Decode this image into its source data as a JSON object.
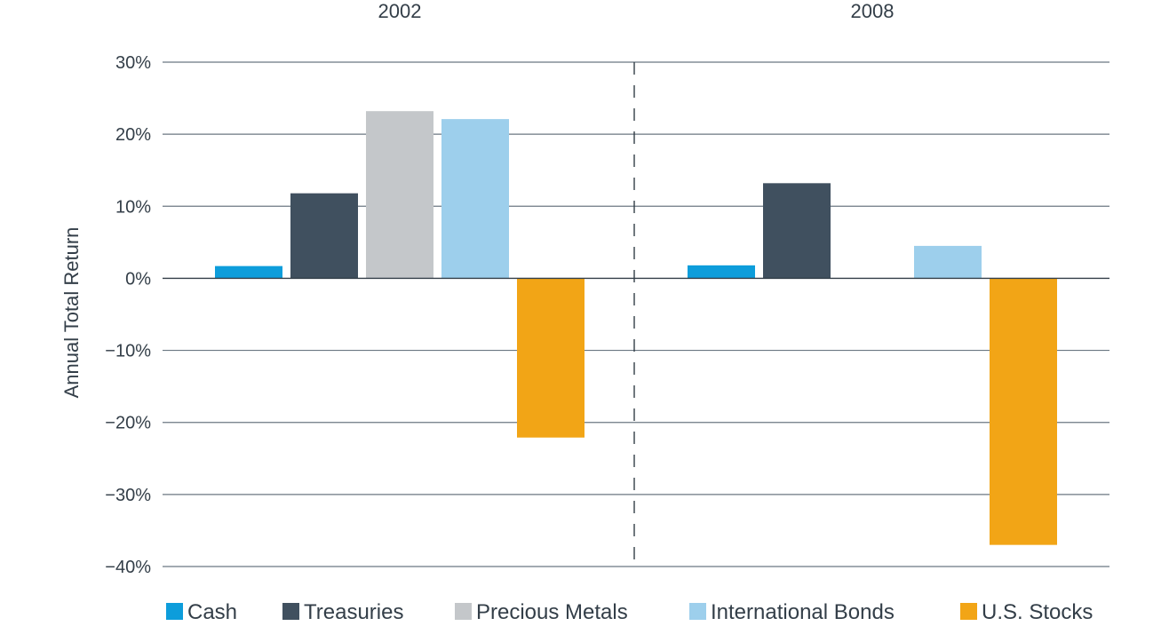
{
  "chart_data": {
    "type": "bar",
    "title": "",
    "xlabel": "",
    "ylabel": "Annual Total Return",
    "ylim": [
      -40,
      30
    ],
    "y_ticks": [
      30,
      20,
      10,
      0,
      -10,
      -20,
      -30,
      -40
    ],
    "y_tick_labels": [
      "30%",
      "20%",
      "10%",
      "0%",
      "−10%",
      "−20%",
      "−30%",
      "−40%"
    ],
    "grid": true,
    "legend_position": "bottom",
    "categories": [
      "2002",
      "2008"
    ],
    "series": [
      {
        "name": "Cash",
        "color": "#0d9ddb",
        "values": [
          1.7,
          1.8
        ]
      },
      {
        "name": "Treasuries",
        "color": "#40505f",
        "values": [
          11.8,
          13.2
        ]
      },
      {
        "name": "Precious Metals",
        "color": "#c4c7ca",
        "values": [
          23.2,
          null
        ]
      },
      {
        "name": "International Bonds",
        "color": "#9dcfec",
        "values": [
          22.1,
          4.5
        ]
      },
      {
        "name": "U.S. Stocks",
        "color": "#f2a516",
        "values": [
          -22.1,
          -37.0
        ]
      }
    ]
  }
}
